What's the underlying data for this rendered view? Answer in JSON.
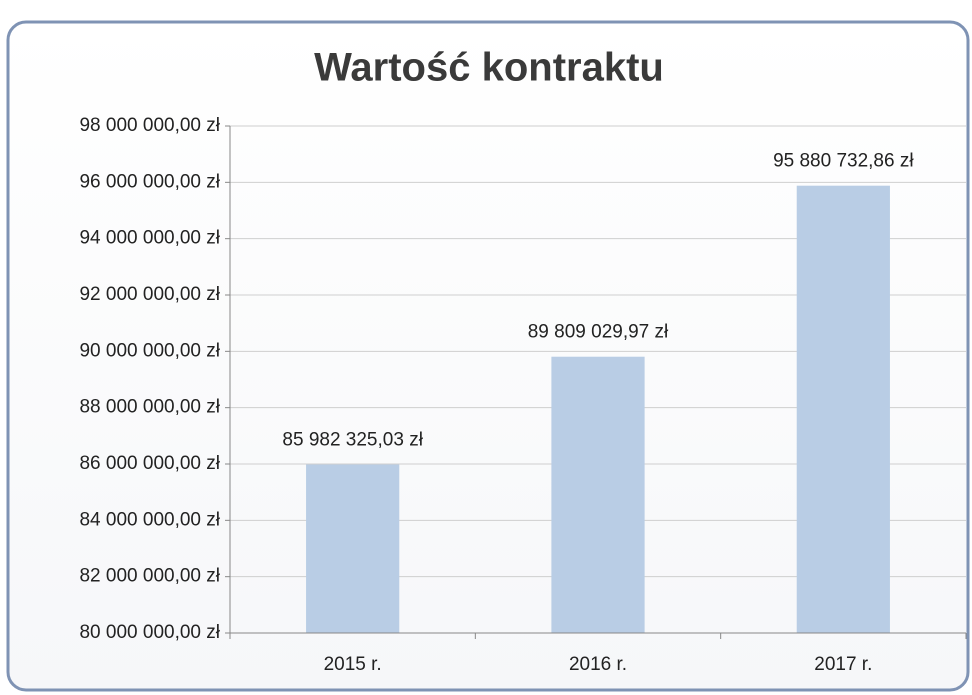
{
  "chart_data": {
    "type": "bar",
    "title": "Wartość kontraktu",
    "categories": [
      "2015 r.",
      "2016 r.",
      "2017 r."
    ],
    "values": [
      85982325.03,
      89809029.97,
      95880732.86
    ],
    "value_labels": [
      "85 982 325,03 zł",
      "89 809 029,97 zł",
      "95 880 732,86 zł"
    ],
    "color": "#b9cde5",
    "ylim": [
      80000000,
      98000000
    ],
    "yticks": [
      {
        "value": 80000000,
        "label": "80 000 000,00 zł"
      },
      {
        "value": 82000000,
        "label": "82 000 000,00 zł"
      },
      {
        "value": 84000000,
        "label": "84 000 000,00 zł"
      },
      {
        "value": 86000000,
        "label": "86 000 000,00 zł"
      },
      {
        "value": 88000000,
        "label": "88 000 000,00 zł"
      },
      {
        "value": 90000000,
        "label": "90 000 000,00 zł"
      },
      {
        "value": 92000000,
        "label": "92 000 000,00 zł"
      },
      {
        "value": 94000000,
        "label": "94 000 000,00 zł"
      },
      {
        "value": 96000000,
        "label": "96 000 000,00 zł"
      },
      {
        "value": 98000000,
        "label": "98 000 000,00 zł"
      }
    ],
    "grid": true
  }
}
